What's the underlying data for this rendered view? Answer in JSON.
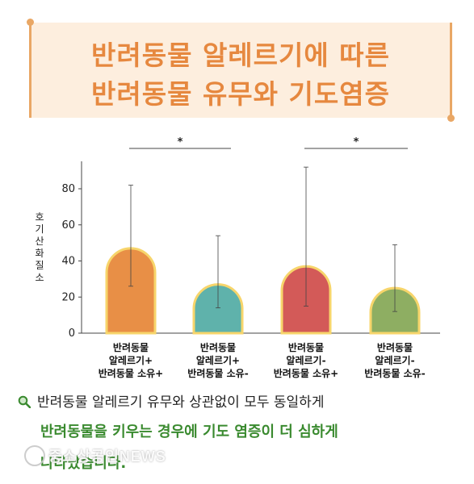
{
  "title": {
    "line1": "반려동물 알레르기에 따른",
    "line2": "반려동물 유무와 기도염증"
  },
  "chart_data": {
    "type": "bar",
    "ylabel": "호기산화질소",
    "ylim": [
      0,
      80
    ],
    "yticks": [
      0,
      20,
      40,
      60,
      80
    ],
    "categories": [
      [
        "반려동물",
        "알레르기+",
        "반려동물 소유+"
      ],
      [
        "반려동물",
        "알레르기+",
        "반려동물 소유-"
      ],
      [
        "반려동물",
        "알레르기-",
        "반려동물 소유+"
      ],
      [
        "반려동물",
        "알레르기-",
        "반려동물 소유-"
      ]
    ],
    "values": [
      47,
      27,
      37,
      25
    ],
    "error_low": [
      26,
      14,
      15,
      12
    ],
    "error_high": [
      82,
      54,
      92,
      49
    ],
    "colors": [
      "#e88f46",
      "#5fb2ab",
      "#d35a58",
      "#8eae62"
    ],
    "significance": [
      {
        "pair": [
          0,
          1
        ],
        "label": "*"
      },
      {
        "pair": [
          2,
          3
        ],
        "label": "*"
      }
    ]
  },
  "caption": {
    "line1": "반려동물 알레르기 유무와 상관없이 모두 동일하게",
    "line2": "반려동물을 키우는 경우에 기도 염증이 더 심하게",
    "line3": "나타났습니다."
  },
  "watermark": "중소상공인NEWS",
  "icons": {
    "caption_icon": "magnifier-icon"
  }
}
